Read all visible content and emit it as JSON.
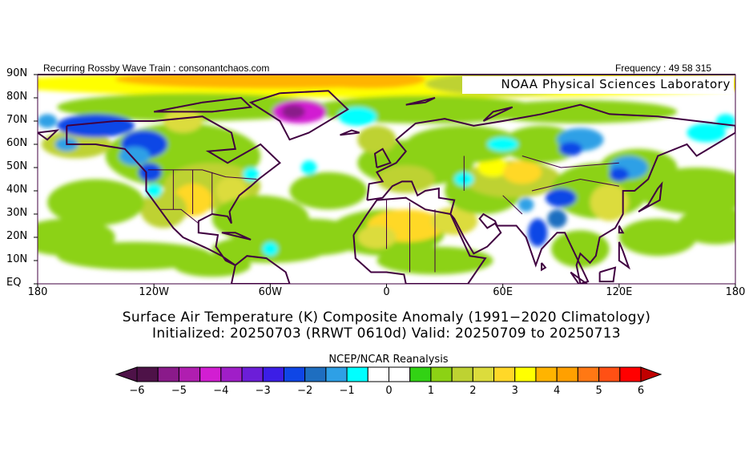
{
  "header": {
    "left_text": "Recurring Rossby Wave Train : consonantchaos.com",
    "right_text": "Frequency : 49 58 315",
    "lab_label": "NOAA Physical Sciences Laboratory"
  },
  "axes": {
    "lat_labels": [
      "90N",
      "80N",
      "70N",
      "60N",
      "50N",
      "40N",
      "30N",
      "20N",
      "10N",
      "EQ"
    ],
    "lon_labels": [
      "180",
      "120W",
      "60W",
      "0",
      "60E",
      "120E",
      "180"
    ]
  },
  "titles": {
    "line1": "Surface Air Temperature (K) Composite Anomaly (1991−2020 Climatology)",
    "line2": "Initialized: 20250703 (RRWT 0610d) Valid: 20250709 to 20250713"
  },
  "colorbar": {
    "title": "NCEP/NCAR Reanalysis",
    "labels": [
      "−6",
      "−5",
      "−4",
      "−3",
      "−2",
      "−1",
      "0",
      "1",
      "2",
      "3",
      "4",
      "5",
      "6"
    ],
    "min": -6,
    "max": 6,
    "step": 0.5,
    "colors": [
      "#4e1248",
      "#8a1a8a",
      "#b01eb0",
      "#d21ed2",
      "#a01ec8",
      "#6c1ed8",
      "#3c1ee6",
      "#0f46e6",
      "#1e6ec0",
      "#2ea0e6",
      "#00ffff",
      "#ffffff",
      "#ffffff",
      "#32d214",
      "#8cd214",
      "#bed232",
      "#dcdc3c",
      "#ffd828",
      "#ffff00",
      "#ffb400",
      "#ffa000",
      "#ff7814",
      "#ff5014",
      "#ff0000"
    ],
    "under_color": "#4e1248",
    "over_color": "#c00000"
  },
  "map_colors": {
    "coastline": "#400040"
  }
}
